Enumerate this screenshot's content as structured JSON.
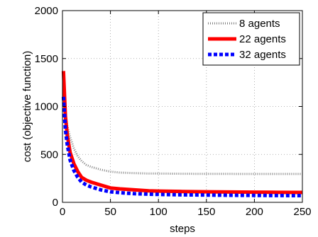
{
  "chart_data": {
    "type": "line",
    "xlabel": "steps",
    "ylabel": "cost (objective function)",
    "xlim": [
      0,
      250
    ],
    "ylim": [
      0,
      2000
    ],
    "xticks": [
      0,
      50,
      100,
      150,
      200,
      250
    ],
    "yticks": [
      0,
      500,
      1000,
      1500,
      2000
    ],
    "grid": true,
    "legend_position": "top-right",
    "series": [
      {
        "name": "8 agents",
        "color": "#808080",
        "style": "dotted",
        "x": [
          1,
          3,
          5,
          8,
          12,
          16,
          20,
          25,
          30,
          40,
          50,
          60,
          75,
          90,
          100,
          125,
          150,
          175,
          200,
          225,
          250
        ],
        "y": [
          1200,
          930,
          800,
          680,
          560,
          480,
          430,
          390,
          370,
          340,
          320,
          310,
          305,
          300,
          300,
          298,
          297,
          297,
          296,
          296,
          296
        ]
      },
      {
        "name": "22 agents",
        "color": "#ff0000",
        "style": "solid",
        "x": [
          1,
          3,
          5,
          8,
          12,
          16,
          20,
          25,
          30,
          40,
          50,
          60,
          75,
          90,
          100,
          125,
          150,
          175,
          200,
          225,
          250
        ],
        "y": [
          1370,
          900,
          700,
          520,
          400,
          320,
          260,
          230,
          210,
          180,
          150,
          140,
          130,
          120,
          117,
          113,
          110,
          108,
          106,
          104,
          103
        ]
      },
      {
        "name": "32 agents",
        "color": "#0000ff",
        "style": "dashed",
        "x": [
          1,
          3,
          5,
          8,
          12,
          16,
          20,
          25,
          30,
          40,
          50,
          60,
          75,
          90,
          100,
          125,
          150,
          175,
          200,
          225,
          250
        ],
        "y": [
          1100,
          760,
          600,
          440,
          330,
          260,
          210,
          180,
          160,
          130,
          110,
          100,
          90,
          85,
          83,
          78,
          76,
          74,
          72,
          71,
          70
        ]
      }
    ]
  }
}
